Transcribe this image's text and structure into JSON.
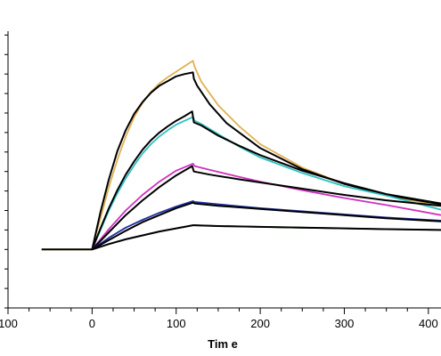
{
  "chart_data": {
    "type": "line",
    "title": "",
    "xlabel": "Tim e",
    "ylabel": "",
    "xlim": [
      -100,
      415
    ],
    "ylim": [
      -7.5,
      28
    ],
    "x_ticks": [
      "100",
      "0",
      "100",
      "200",
      "300",
      "400"
    ],
    "x_tick_values": [
      -100,
      0,
      100,
      200,
      300,
      400
    ],
    "y_minor_ticks": [
      -7.5,
      -5,
      -2.5,
      0,
      2.5,
      5,
      7.5,
      10,
      12.5,
      15,
      17.5,
      20,
      22.5,
      25,
      27.5
    ],
    "grid": false,
    "legend": "none",
    "series": [
      {
        "color": "#e0b050",
        "kind": "measured",
        "x": [
          -60,
          0,
          2,
          10,
          20,
          30,
          40,
          50,
          60,
          70,
          80,
          90,
          100,
          110,
          120,
          122,
          130,
          150,
          175,
          200,
          250,
          300,
          350,
          415
        ],
        "y": [
          0,
          0,
          1,
          4,
          8,
          11.5,
          14.5,
          17,
          18.8,
          20.2,
          21.3,
          22.1,
          22.8,
          23.5,
          24.2,
          23.4,
          21.5,
          18.5,
          15.8,
          13.5,
          10.5,
          8.4,
          6.9,
          5.6
        ]
      },
      {
        "color": "#000000",
        "kind": "fit",
        "x": [
          0,
          10,
          20,
          30,
          40,
          50,
          60,
          70,
          80,
          90,
          100,
          110,
          120,
          121,
          125,
          140,
          160,
          200,
          250,
          300,
          350,
          415
        ],
        "y": [
          0,
          4.8,
          9,
          12.6,
          15.3,
          17.4,
          18.9,
          20.1,
          21,
          21.6,
          22.2,
          22.5,
          22.7,
          21.9,
          21,
          18.6,
          16.2,
          13,
          10.3,
          8.4,
          7,
          5.8
        ]
      },
      {
        "color": "#30c0c0",
        "kind": "measured",
        "x": [
          0,
          10,
          20,
          30,
          40,
          50,
          60,
          70,
          80,
          90,
          100,
          110,
          120,
          122,
          130,
          150,
          175,
          200,
          250,
          300,
          350,
          415
        ],
        "y": [
          0,
          2.5,
          5,
          7.2,
          9.1,
          10.8,
          12.3,
          13.5,
          14.5,
          15.3,
          16,
          16.5,
          17,
          16.5,
          16.1,
          14.8,
          13.2,
          11.8,
          9.8,
          8.1,
          6.9,
          5.1
        ]
      },
      {
        "color": "#000000",
        "kind": "fit",
        "x": [
          0,
          10,
          20,
          30,
          40,
          50,
          60,
          70,
          80,
          90,
          100,
          110,
          119,
          121,
          130,
          150,
          175,
          200,
          250,
          300,
          350,
          415
        ],
        "y": [
          0,
          2.7,
          5.3,
          7.6,
          9.6,
          11.3,
          12.8,
          14,
          15,
          15.8,
          16.5,
          17.1,
          17.7,
          16.3,
          15.9,
          14.6,
          13.3,
          12.1,
          10.1,
          8.5,
          7.1,
          5.9
        ]
      },
      {
        "color": "#d030c0",
        "kind": "measured",
        "x": [
          0,
          20,
          40,
          60,
          80,
          100,
          120,
          122,
          140,
          175,
          200,
          250,
          300,
          350,
          415
        ],
        "y": [
          0,
          2.6,
          5,
          7,
          8.7,
          10.1,
          11,
          10.7,
          10.2,
          9.3,
          8.7,
          7.6,
          6.6,
          5.7,
          4.4
        ]
      },
      {
        "color": "#000000",
        "kind": "fit",
        "x": [
          0,
          20,
          40,
          60,
          80,
          100,
          119,
          121,
          140,
          175,
          200,
          250,
          300,
          350,
          415
        ],
        "y": [
          0,
          2.2,
          4.4,
          6.3,
          8,
          9.5,
          10.7,
          10,
          9.6,
          9,
          8.6,
          7.8,
          7,
          6.3,
          5.6
        ]
      },
      {
        "color": "#2030a0",
        "kind": "measured",
        "x": [
          0,
          20,
          40,
          60,
          80,
          100,
          120,
          122,
          150,
          200,
          250,
          300,
          350,
          415
        ],
        "y": [
          0,
          1.5,
          2.8,
          3.8,
          4.7,
          5.5,
          6.2,
          6.1,
          5.8,
          5.3,
          4.9,
          4.5,
          4.1,
          3.7
        ]
      },
      {
        "color": "#000000",
        "kind": "fit",
        "x": [
          0,
          20,
          40,
          60,
          80,
          100,
          120,
          122,
          150,
          200,
          250,
          300,
          350,
          415
        ],
        "y": [
          0,
          1.2,
          2.4,
          3.5,
          4.4,
          5.3,
          6,
          5.9,
          5.6,
          5.2,
          4.8,
          4.4,
          4,
          3.6
        ]
      },
      {
        "color": "#2a7a2a",
        "kind": "measured",
        "x": [
          0,
          20,
          40,
          60,
          80,
          100,
          120,
          122,
          150,
          200,
          250,
          300,
          350,
          415
        ],
        "y": [
          0,
          0.7,
          1.3,
          1.8,
          2.3,
          2.7,
          3.1,
          3.1,
          3,
          2.9,
          2.8,
          2.7,
          2.6,
          2.5
        ]
      },
      {
        "color": "#000000",
        "kind": "fit",
        "x": [
          -60,
          0,
          20,
          40,
          60,
          80,
          100,
          120,
          122,
          150,
          200,
          250,
          300,
          350,
          415
        ],
        "y": [
          0,
          0,
          0.7,
          1.3,
          1.8,
          2.3,
          2.7,
          3.1,
          3.1,
          3,
          2.9,
          2.8,
          2.7,
          2.6,
          2.5
        ]
      }
    ]
  }
}
